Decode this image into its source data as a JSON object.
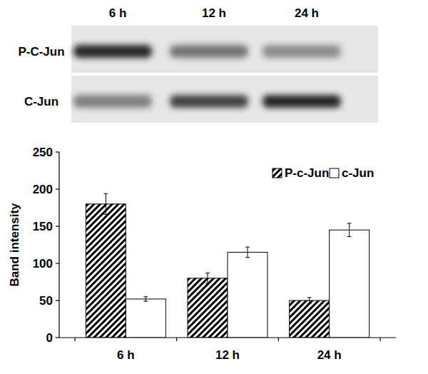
{
  "blot": {
    "lanes": [
      "6 h",
      "12 h",
      "24 h"
    ],
    "rows": [
      "P-C-Jun",
      "C-Jun"
    ]
  },
  "chart_data": {
    "type": "bar",
    "y_label": "Band intensity",
    "categories": [
      "6 h",
      "12 h",
      "24 h"
    ],
    "series": [
      {
        "name": "P-c-Jun",
        "color": "#000000",
        "values": [
          180,
          80,
          50
        ],
        "errors": [
          14,
          7,
          4
        ]
      },
      {
        "name": "c-Jun",
        "color": "#ffffff",
        "values": [
          52,
          115,
          145
        ],
        "errors": [
          3,
          7,
          9
        ]
      }
    ],
    "ylim": [
      0,
      250
    ],
    "yticks": [
      0,
      50,
      100,
      150,
      200,
      250
    ],
    "legend": "top-right"
  }
}
